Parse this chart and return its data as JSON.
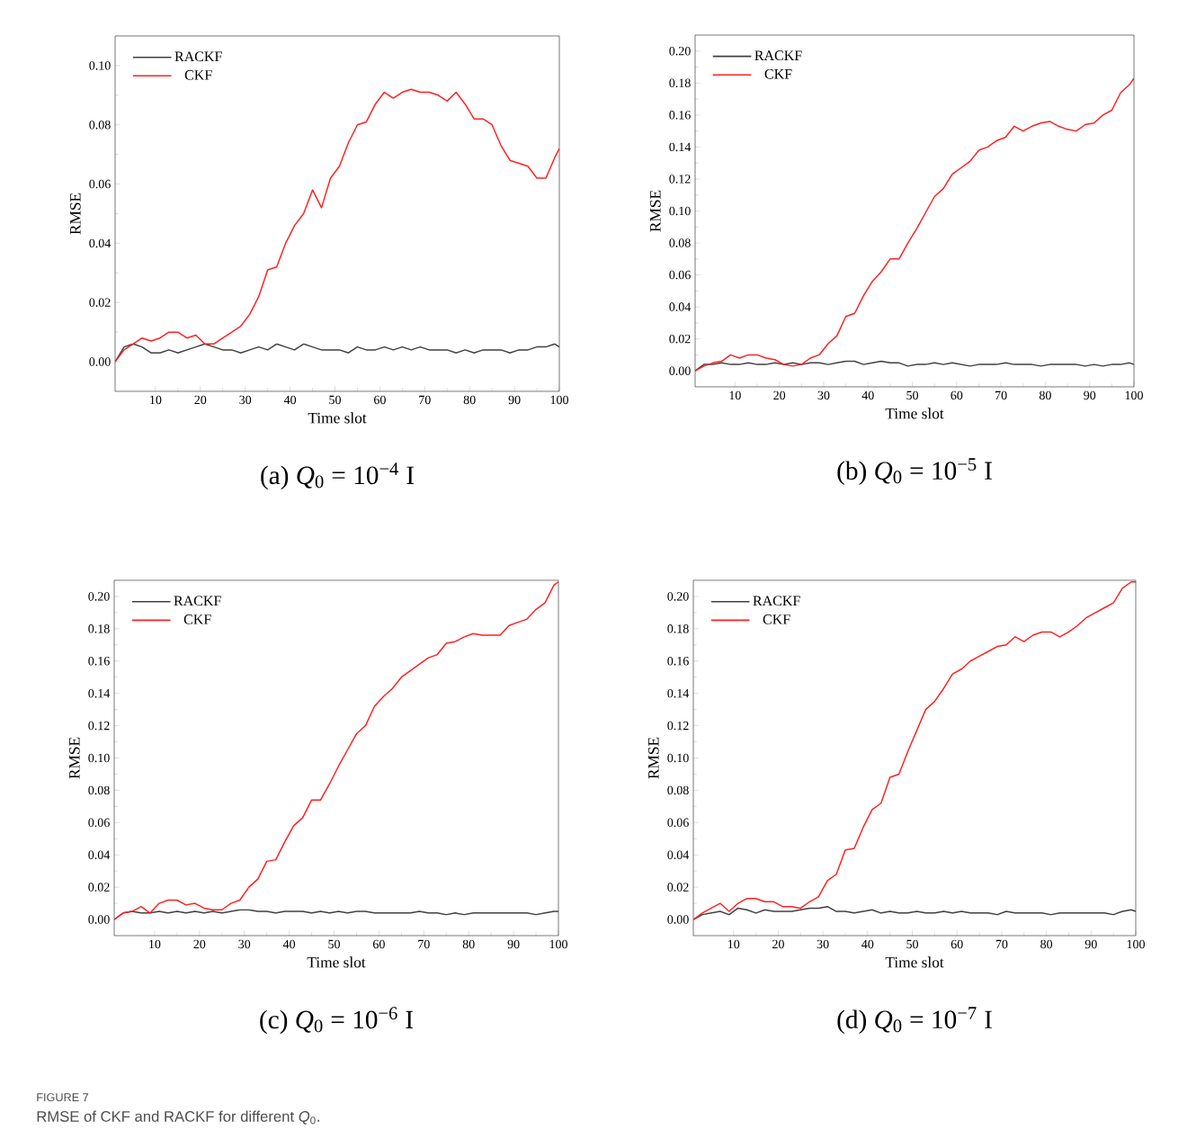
{
  "chart_data": [
    {
      "type": "line",
      "title": "(a) *Q*$_{0}$ = 10$^{−4}$ I",
      "xlabel": "Time slot",
      "ylabel": "RMSE",
      "legend": "top left",
      "xlim": [
        1,
        100
      ],
      "xticks": [
        10,
        20,
        30,
        40,
        50,
        60,
        70,
        80,
        90,
        100
      ],
      "ylim": [
        -0.01,
        0.11
      ],
      "yticks": [
        {
          "value": 0,
          "label": "0.00"
        },
        {
          "value": 0.02,
          "label": "0.02"
        },
        {
          "value": 0.04,
          "label": "0.04"
        },
        {
          "value": 0.06,
          "label": "0.06"
        },
        {
          "value": 0.08,
          "label": "0.08"
        },
        {
          "value": 0.1,
          "label": "0.10"
        }
      ],
      "x": [
        1,
        3,
        5,
        7,
        9,
        11,
        13,
        15,
        17,
        19,
        21,
        23,
        25,
        27,
        29,
        31,
        33,
        35,
        37,
        39,
        41,
        43,
        45,
        47,
        49,
        51,
        53,
        55,
        57,
        59,
        61,
        63,
        65,
        67,
        69,
        71,
        73,
        75,
        77,
        79,
        81,
        83,
        85,
        87,
        89,
        91,
        93,
        95,
        97,
        99,
        100
      ],
      "series": [
        {
          "name": "RACKF",
          "color": "#404040",
          "values": [
            0.0,
            0.005,
            0.006,
            0.005,
            0.003,
            0.003,
            0.004,
            0.003,
            0.004,
            0.005,
            0.006,
            0.005,
            0.004,
            0.004,
            0.003,
            0.004,
            0.005,
            0.004,
            0.006,
            0.005,
            0.004,
            0.006,
            0.005,
            0.004,
            0.004,
            0.004,
            0.003,
            0.005,
            0.004,
            0.004,
            0.005,
            0.004,
            0.005,
            0.004,
            0.005,
            0.004,
            0.004,
            0.004,
            0.003,
            0.004,
            0.003,
            0.004,
            0.004,
            0.004,
            0.003,
            0.004,
            0.004,
            0.005,
            0.005,
            0.006,
            0.005
          ]
        },
        {
          "name": "CKF",
          "color": "#ff2020",
          "values": [
            0.0,
            0.004,
            0.006,
            0.008,
            0.007,
            0.008,
            0.01,
            0.01,
            0.008,
            0.009,
            0.006,
            0.006,
            0.008,
            0.01,
            0.012,
            0.016,
            0.022,
            0.031,
            0.032,
            0.04,
            0.046,
            0.05,
            0.058,
            0.052,
            0.062,
            0.066,
            0.074,
            0.08,
            0.081,
            0.087,
            0.091,
            0.089,
            0.091,
            0.092,
            0.091,
            0.091,
            0.09,
            0.088,
            0.091,
            0.087,
            0.082,
            0.082,
            0.08,
            0.073,
            0.068,
            0.067,
            0.066,
            0.062,
            0.062,
            0.069,
            0.072
          ]
        }
      ]
    },
    {
      "type": "line",
      "title": "(b) *Q*$_{0}$ = 10$^{−5}$ I",
      "xlabel": "Time slot",
      "ylabel": "RMSE",
      "legend": "top left",
      "xlim": [
        1,
        100
      ],
      "xticks": [
        10,
        20,
        30,
        40,
        50,
        60,
        70,
        80,
        90,
        100
      ],
      "ylim": [
        -0.01,
        0.21
      ],
      "yticks": [
        {
          "value": 0,
          "label": "0.00"
        },
        {
          "value": 0.02,
          "label": "0.02"
        },
        {
          "value": 0.04,
          "label": "0.04"
        },
        {
          "value": 0.06,
          "label": "0.06"
        },
        {
          "value": 0.08,
          "label": "0.08"
        },
        {
          "value": 0.1,
          "label": "0.10"
        },
        {
          "value": 0.12,
          "label": "0.12"
        },
        {
          "value": 0.14,
          "label": "0.14"
        },
        {
          "value": 0.16,
          "label": "0.16"
        },
        {
          "value": 0.18,
          "label": "0.18"
        },
        {
          "value": 0.2,
          "label": "0.20"
        }
      ],
      "x": [
        1,
        3,
        5,
        7,
        9,
        11,
        13,
        15,
        17,
        19,
        21,
        23,
        25,
        27,
        29,
        31,
        33,
        35,
        37,
        39,
        41,
        43,
        45,
        47,
        49,
        51,
        53,
        55,
        57,
        59,
        61,
        63,
        65,
        67,
        69,
        71,
        73,
        75,
        77,
        79,
        81,
        83,
        85,
        87,
        89,
        91,
        93,
        95,
        97,
        99,
        100
      ],
      "series": [
        {
          "name": "RACKF",
          "color": "#404040",
          "values": [
            0.0,
            0.004,
            0.004,
            0.005,
            0.004,
            0.004,
            0.005,
            0.004,
            0.004,
            0.005,
            0.004,
            0.005,
            0.004,
            0.005,
            0.005,
            0.004,
            0.005,
            0.006,
            0.006,
            0.004,
            0.005,
            0.006,
            0.005,
            0.005,
            0.003,
            0.004,
            0.004,
            0.005,
            0.004,
            0.005,
            0.004,
            0.003,
            0.004,
            0.004,
            0.004,
            0.005,
            0.004,
            0.004,
            0.004,
            0.003,
            0.004,
            0.004,
            0.004,
            0.004,
            0.003,
            0.004,
            0.003,
            0.004,
            0.004,
            0.005,
            0.004
          ]
        },
        {
          "name": "CKF",
          "color": "#ff2020",
          "values": [
            0.0,
            0.003,
            0.005,
            0.006,
            0.01,
            0.008,
            0.01,
            0.01,
            0.008,
            0.007,
            0.004,
            0.003,
            0.004,
            0.008,
            0.01,
            0.017,
            0.022,
            0.034,
            0.036,
            0.047,
            0.056,
            0.062,
            0.07,
            0.07,
            0.08,
            0.089,
            0.099,
            0.109,
            0.114,
            0.123,
            0.127,
            0.131,
            0.138,
            0.14,
            0.144,
            0.146,
            0.153,
            0.15,
            0.153,
            0.155,
            0.156,
            0.153,
            0.151,
            0.15,
            0.154,
            0.155,
            0.16,
            0.163,
            0.174,
            0.179,
            0.183
          ]
        }
      ]
    },
    {
      "type": "line",
      "title": "(c) *Q*$_{0}$ = 10$^{−6}$ I",
      "xlabel": "Time slot",
      "ylabel": "RMSE",
      "legend": "top left",
      "xlim": [
        1,
        100
      ],
      "xticks": [
        10,
        20,
        30,
        40,
        50,
        60,
        70,
        80,
        90,
        100
      ],
      "ylim": [
        -0.01,
        0.21
      ],
      "yticks": [
        {
          "value": 0,
          "label": "0.00"
        },
        {
          "value": 0.02,
          "label": "0.02"
        },
        {
          "value": 0.04,
          "label": "0.04"
        },
        {
          "value": 0.06,
          "label": "0.06"
        },
        {
          "value": 0.08,
          "label": "0.08"
        },
        {
          "value": 0.1,
          "label": "0.10"
        },
        {
          "value": 0.12,
          "label": "0.12"
        },
        {
          "value": 0.14,
          "label": "0.14"
        },
        {
          "value": 0.16,
          "label": "0.16"
        },
        {
          "value": 0.18,
          "label": "0.18"
        },
        {
          "value": 0.2,
          "label": "0.20"
        }
      ],
      "x": [
        1,
        3,
        5,
        7,
        9,
        11,
        13,
        15,
        17,
        19,
        21,
        23,
        25,
        27,
        29,
        31,
        33,
        35,
        37,
        39,
        41,
        43,
        45,
        47,
        49,
        51,
        53,
        55,
        57,
        59,
        61,
        63,
        65,
        67,
        69,
        71,
        73,
        75,
        77,
        79,
        81,
        83,
        85,
        87,
        89,
        91,
        93,
        95,
        97,
        99,
        100
      ],
      "series": [
        {
          "name": "RACKF",
          "color": "#404040",
          "values": [
            0.0,
            0.004,
            0.005,
            0.004,
            0.004,
            0.005,
            0.004,
            0.005,
            0.004,
            0.005,
            0.004,
            0.005,
            0.004,
            0.005,
            0.006,
            0.006,
            0.005,
            0.005,
            0.004,
            0.005,
            0.005,
            0.005,
            0.004,
            0.005,
            0.004,
            0.005,
            0.004,
            0.005,
            0.005,
            0.004,
            0.004,
            0.004,
            0.004,
            0.004,
            0.005,
            0.004,
            0.004,
            0.003,
            0.004,
            0.003,
            0.004,
            0.004,
            0.004,
            0.004,
            0.004,
            0.004,
            0.004,
            0.003,
            0.004,
            0.005,
            0.005
          ]
        },
        {
          "name": "CKF",
          "color": "#ff2020",
          "values": [
            0.0,
            0.004,
            0.005,
            0.008,
            0.004,
            0.01,
            0.012,
            0.012,
            0.009,
            0.01,
            0.007,
            0.006,
            0.006,
            0.01,
            0.012,
            0.02,
            0.025,
            0.036,
            0.037,
            0.048,
            0.058,
            0.063,
            0.074,
            0.074,
            0.084,
            0.095,
            0.105,
            0.115,
            0.12,
            0.132,
            0.138,
            0.143,
            0.15,
            0.154,
            0.158,
            0.162,
            0.164,
            0.171,
            0.172,
            0.175,
            0.177,
            0.176,
            0.176,
            0.176,
            0.182,
            0.184,
            0.186,
            0.192,
            0.196,
            0.207,
            0.209
          ]
        }
      ]
    },
    {
      "type": "line",
      "title": "(d) *Q*$_{0}$ = 10$^{−7}$ I",
      "xlabel": "Time slot",
      "ylabel": "RMSE",
      "legend": "top left",
      "xlim": [
        1,
        100
      ],
      "xticks": [
        10,
        20,
        30,
        40,
        50,
        60,
        70,
        80,
        90,
        100
      ],
      "ylim": [
        -0.01,
        0.21
      ],
      "yticks": [
        {
          "value": 0,
          "label": "0.00"
        },
        {
          "value": 0.02,
          "label": "0.02"
        },
        {
          "value": 0.04,
          "label": "0.04"
        },
        {
          "value": 0.06,
          "label": "0.06"
        },
        {
          "value": 0.08,
          "label": "0.08"
        },
        {
          "value": 0.1,
          "label": "0.10"
        },
        {
          "value": 0.12,
          "label": "0.12"
        },
        {
          "value": 0.14,
          "label": "0.14"
        },
        {
          "value": 0.16,
          "label": "0.16"
        },
        {
          "value": 0.18,
          "label": "0.18"
        },
        {
          "value": 0.2,
          "label": "0.20"
        }
      ],
      "x": [
        1,
        3,
        5,
        7,
        9,
        11,
        13,
        15,
        17,
        19,
        21,
        23,
        25,
        27,
        29,
        31,
        33,
        35,
        37,
        39,
        41,
        43,
        45,
        47,
        49,
        51,
        53,
        55,
        57,
        59,
        61,
        63,
        65,
        67,
        69,
        71,
        73,
        75,
        77,
        79,
        81,
        83,
        85,
        87,
        89,
        91,
        93,
        95,
        97,
        99,
        100
      ],
      "series": [
        {
          "name": "RACKF",
          "color": "#404040",
          "values": [
            0.0,
            0.003,
            0.004,
            0.005,
            0.003,
            0.007,
            0.006,
            0.004,
            0.006,
            0.005,
            0.005,
            0.005,
            0.006,
            0.007,
            0.007,
            0.008,
            0.005,
            0.005,
            0.004,
            0.005,
            0.006,
            0.004,
            0.005,
            0.004,
            0.004,
            0.005,
            0.004,
            0.004,
            0.005,
            0.004,
            0.005,
            0.004,
            0.004,
            0.004,
            0.003,
            0.005,
            0.004,
            0.004,
            0.004,
            0.004,
            0.003,
            0.004,
            0.004,
            0.004,
            0.004,
            0.004,
            0.004,
            0.003,
            0.005,
            0.006,
            0.005
          ]
        },
        {
          "name": "CKF",
          "color": "#ff2020",
          "values": [
            0.0,
            0.004,
            0.007,
            0.01,
            0.005,
            0.01,
            0.013,
            0.013,
            0.011,
            0.011,
            0.008,
            0.008,
            0.007,
            0.011,
            0.014,
            0.024,
            0.028,
            0.043,
            0.044,
            0.057,
            0.068,
            0.072,
            0.088,
            0.09,
            0.104,
            0.117,
            0.13,
            0.135,
            0.143,
            0.152,
            0.155,
            0.16,
            0.163,
            0.166,
            0.169,
            0.17,
            0.175,
            0.172,
            0.176,
            0.178,
            0.178,
            0.175,
            0.178,
            0.182,
            0.187,
            0.19,
            0.193,
            0.196,
            0.205,
            0.209,
            0.209
          ]
        }
      ]
    },
    {
      "type": "other",
      "annotations": [
        "FIGURE 7",
        "RMSE of CKF and RACKF for different *Q*$_{0}$."
      ]
    }
  ]
}
